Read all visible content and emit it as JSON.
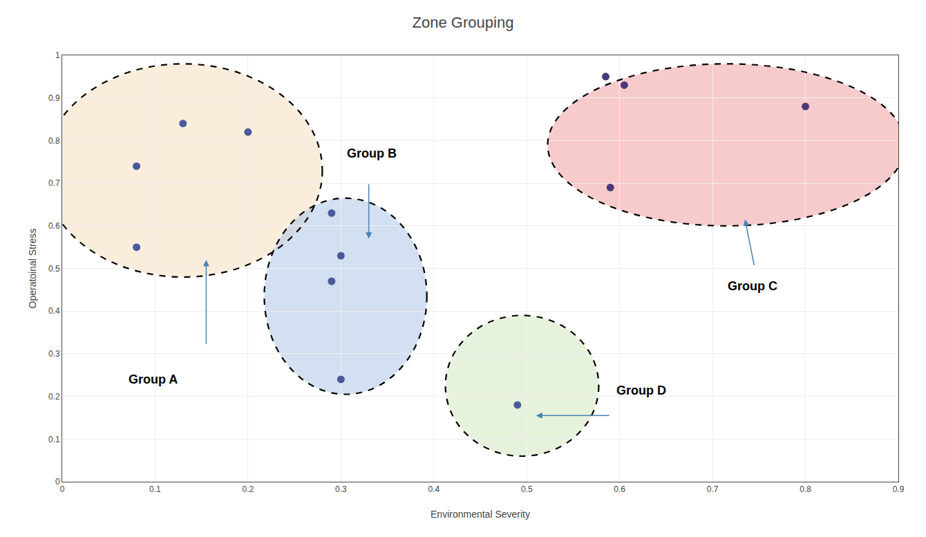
{
  "chart_data": {
    "type": "scatter",
    "title": "Zone Grouping",
    "xlabel": "Environmental Severity",
    "ylabel": "Operatoinal Stress",
    "xlim": [
      0,
      0.9
    ],
    "ylim": [
      0,
      1.0
    ],
    "xticks": [
      0,
      0.1,
      0.2,
      0.3,
      0.4,
      0.5,
      0.6,
      0.7,
      0.8,
      0.9
    ],
    "yticks": [
      0,
      0.1,
      0.2,
      0.3,
      0.4,
      0.5,
      0.6,
      0.7,
      0.8,
      0.9,
      1
    ],
    "grid": true,
    "series": [
      {
        "name": "Group A",
        "color": "#4a5a9a",
        "x": [
          0.08,
          0.08,
          0.13,
          0.2
        ],
        "values": [
          0.74,
          0.55,
          0.84,
          0.82
        ],
        "ellipse": {
          "center": [
            0.13,
            0.73
          ],
          "width": 0.3,
          "height": 0.5,
          "color": "#f5dfc0"
        },
        "label_at": [
          0.07,
          0.22
        ],
        "arrow": {
          "from": [
            0.155,
            0.32
          ],
          "to": [
            0.155,
            0.52
          ],
          "color": "#4682b4"
        }
      },
      {
        "name": "Group B",
        "color": "#4a5a9a",
        "x": [
          0.29,
          0.3,
          0.29,
          0.3
        ],
        "values": [
          0.63,
          0.53,
          0.47,
          0.24
        ],
        "ellipse": {
          "center": [
            0.305,
            0.435
          ],
          "width": 0.175,
          "height": 0.46,
          "color": "#aec6e8"
        },
        "label_at": [
          0.305,
          0.75
        ],
        "arrow": {
          "from": [
            0.33,
            0.7
          ],
          "to": [
            0.33,
            0.57
          ],
          "color": "#4682b4"
        }
      },
      {
        "name": "Group C",
        "color": "#4a3a7a",
        "x": [
          0.585,
          0.605,
          0.59,
          0.8
        ],
        "values": [
          0.95,
          0.93,
          0.69,
          0.88
        ],
        "ellipse": {
          "center": [
            0.715,
            0.79
          ],
          "width": 0.385,
          "height": 0.38,
          "color": "#f0a0a0"
        },
        "label_at": [
          0.715,
          0.44
        ],
        "arrow": {
          "from": [
            0.745,
            0.505
          ],
          "to": [
            0.735,
            0.615
          ],
          "color": "#4682b4"
        }
      },
      {
        "name": "Group D",
        "color": "#4a5a9a",
        "x": [
          0.49
        ],
        "values": [
          0.18
        ],
        "ellipse": {
          "center": [
            0.495,
            0.225
          ],
          "width": 0.165,
          "height": 0.33,
          "color": "#d4e8c0"
        },
        "label_at": [
          0.595,
          0.195
        ],
        "arrow": {
          "from": [
            0.59,
            0.155
          ],
          "to": [
            0.51,
            0.155
          ],
          "color": "#4682b4"
        }
      }
    ]
  }
}
